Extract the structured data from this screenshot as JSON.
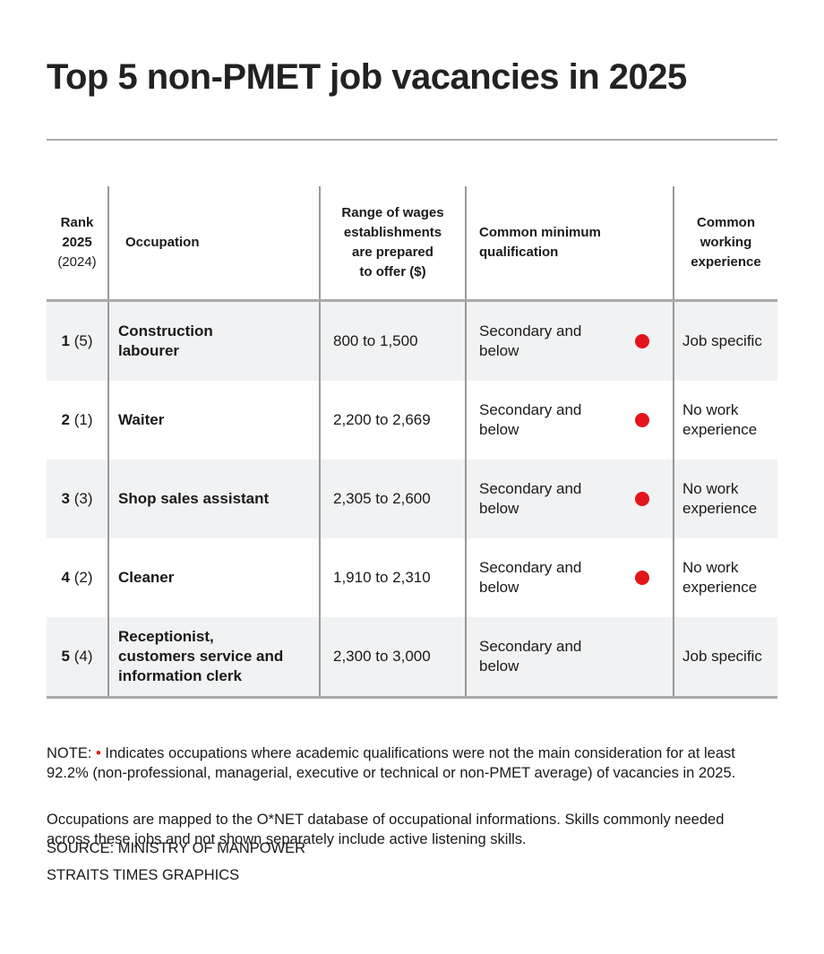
{
  "title": "Top 5 non-PMET job vacancies in 2025",
  "header": {
    "rank": "Rank\n2025",
    "rank_prev": "(2024)",
    "occupation": "Occupation",
    "wages": "Range of wages\nestablishments\nare prepared\nto offer ($)",
    "qualification": "Common minimum\nqualification",
    "experience": "Common\nworking\nexperience"
  },
  "rows": [
    {
      "rank": "1",
      "rank_prev": "(5)",
      "occupation": "Construction\nlabourer",
      "wages": "800 to 1,500",
      "qualification": "Secondary and\nbelow",
      "flagged": true,
      "experience": "Job specific"
    },
    {
      "rank": "2",
      "rank_prev": "(1)",
      "occupation": "Waiter",
      "wages": "2,200 to 2,669",
      "qualification": "Secondary and\nbelow",
      "flagged": true,
      "experience": "No work\nexperience"
    },
    {
      "rank": "3",
      "rank_prev": "(3)",
      "occupation": "Shop sales assistant",
      "wages": "2,305 to 2,600",
      "qualification": "Secondary and\nbelow",
      "flagged": true,
      "experience": "No work\nexperience"
    },
    {
      "rank": "4",
      "rank_prev": "(2)",
      "occupation": "Cleaner",
      "wages": "1,910 to 2,310",
      "qualification": "Secondary and\nbelow",
      "flagged": true,
      "experience": "No work\nexperience"
    },
    {
      "rank": "5",
      "rank_prev": "(4)",
      "occupation": "Receptionist,\ncustomers service and\ninformation clerk",
      "wages": "2,300 to 3,000",
      "qualification": "Secondary and\nbelow",
      "flagged": false,
      "experience": "Job specific"
    }
  ],
  "notes": {
    "label": "NOTE:",
    "text": "Indicates occupations where academic qualifications were not the main consideration for at least\n92.2% (non-professional, managerial, executive or technical or non-PMET average) of vacancies in 2025.",
    "text2": "Occupations are mapped to the O*NET database of occupational informations. Skills commonly needed\nacross these jobs and not shown separately include active listening skills."
  },
  "source": "SOURCE: MINISTRY OF MANPOWER",
  "credit": "STRAITS TIMES GRAPHICS"
}
